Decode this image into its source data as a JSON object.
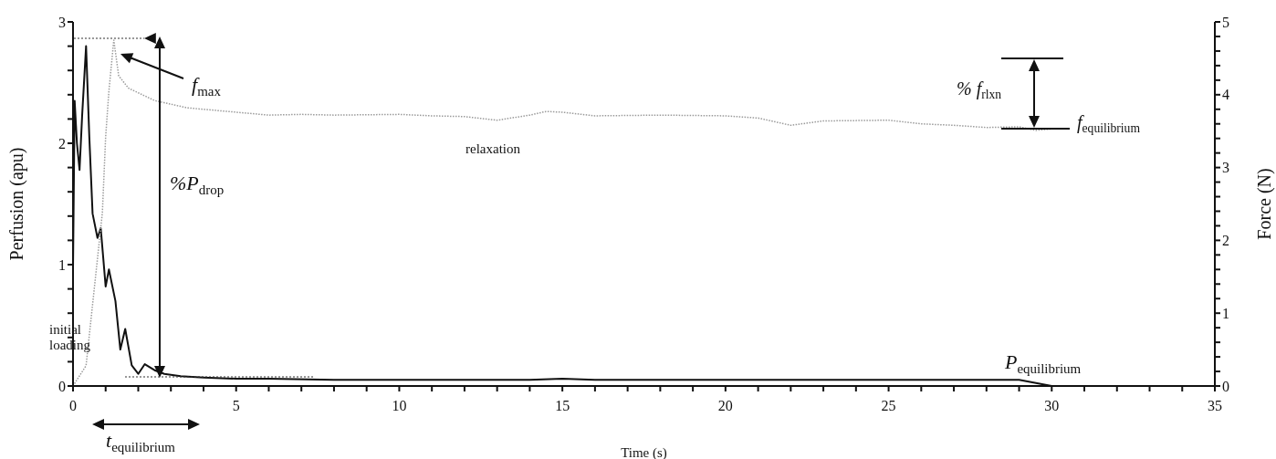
{
  "chart_data": {
    "type": "line",
    "xlabel": "Time (s)",
    "ylabel": "Perfusion (apu)",
    "y2label": "Force (N)",
    "xlim": [
      0,
      35
    ],
    "xticks": [
      0,
      {
        "value": 1,
        "label": null
      },
      {
        "value": 2,
        "label": null
      },
      {
        "value": 3,
        "label": null
      },
      {
        "value": 4,
        "label": null
      },
      5,
      {
        "value": 6,
        "label": null
      },
      {
        "value": 7,
        "label": null
      },
      {
        "value": 8,
        "label": null
      },
      {
        "value": 9,
        "label": null
      },
      10,
      {
        "value": 11,
        "label": null
      },
      {
        "value": 12,
        "label": null
      },
      {
        "value": 13,
        "label": null
      },
      {
        "value": 14,
        "label": null
      },
      15,
      {
        "value": 16,
        "label": null
      },
      {
        "value": 17,
        "label": null
      },
      {
        "value": 18,
        "label": null
      },
      {
        "value": 19,
        "label": null
      },
      20,
      {
        "value": 21,
        "label": null
      },
      {
        "value": 22,
        "label": null
      },
      {
        "value": 23,
        "label": null
      },
      {
        "value": 24,
        "label": null
      },
      25,
      {
        "value": 26,
        "label": null
      },
      {
        "value": 27,
        "label": null
      },
      {
        "value": 28,
        "label": null
      },
      {
        "value": 29,
        "label": null
      },
      30,
      {
        "value": 31,
        "label": null
      },
      {
        "value": 32,
        "label": null
      },
      {
        "value": 33,
        "label": null
      },
      {
        "value": 34,
        "label": null
      },
      35
    ],
    "ylim": [
      0,
      3
    ],
    "yticks": [
      0,
      {
        "value": 0.2,
        "label": null
      },
      {
        "value": 0.4,
        "label": null
      },
      {
        "value": 0.6,
        "label": null
      },
      {
        "value": 0.8,
        "label": null
      },
      1,
      {
        "value": 1.2,
        "label": null
      },
      {
        "value": 1.4,
        "label": null
      },
      {
        "value": 1.6,
        "label": null
      },
      {
        "value": 1.8,
        "label": null
      },
      2,
      {
        "value": 2.2,
        "label": null
      },
      {
        "value": 2.4,
        "label": null
      },
      {
        "value": 2.6,
        "label": null
      },
      {
        "value": 2.8,
        "label": null
      },
      3
    ],
    "y2lim": [
      0,
      5
    ],
    "y2ticks": [
      0,
      {
        "value": 0.2,
        "label": null
      },
      {
        "value": 0.4,
        "label": null
      },
      {
        "value": 0.6,
        "label": null
      },
      {
        "value": 0.8,
        "label": null
      },
      1,
      {
        "value": 1.2,
        "label": null
      },
      {
        "value": 1.4,
        "label": null
      },
      {
        "value": 1.6,
        "label": null
      },
      {
        "value": 1.8,
        "label": null
      },
      2,
      {
        "value": 2.2,
        "label": null
      },
      {
        "value": 2.4,
        "label": null
      },
      {
        "value": 2.6,
        "label": null
      },
      {
        "value": 2.8,
        "label": null
      },
      3,
      {
        "value": 3.2,
        "label": null
      },
      {
        "value": 3.4,
        "label": null
      },
      {
        "value": 3.6,
        "label": null
      },
      {
        "value": 3.8,
        "label": null
      },
      4,
      {
        "value": 4.2,
        "label": null
      },
      {
        "value": 4.4,
        "label": null
      },
      {
        "value": 4.6,
        "label": null
      },
      {
        "value": 4.8,
        "label": null
      },
      5
    ],
    "grid": false,
    "marker": "none",
    "series": [
      {
        "color": "#111111",
        "line_style": "solid",
        "x": [
          0,
          0.05,
          0.12,
          0.2,
          0.28,
          0.4,
          0.5,
          0.6,
          0.75,
          0.85,
          1.0,
          1.1,
          1.3,
          1.45,
          1.6,
          1.8,
          2.0,
          2.2,
          2.5,
          2.8,
          3.3,
          4,
          5,
          6,
          8,
          10,
          12,
          14,
          15,
          16,
          18,
          20,
          22,
          24,
          26,
          28,
          29,
          30
        ],
        "values": [
          0.97,
          2.35,
          2.0,
          1.78,
          2.23,
          2.8,
          2.05,
          1.42,
          1.22,
          1.3,
          0.82,
          0.96,
          0.7,
          0.3,
          0.47,
          0.17,
          0.1,
          0.18,
          0.13,
          0.1,
          0.08,
          0.07,
          0.06,
          0.06,
          0.05,
          0.05,
          0.05,
          0.05,
          0.06,
          0.05,
          0.05,
          0.05,
          0.05,
          0.05,
          0.05,
          0.05,
          0.05,
          0
        ]
      },
      {
        "color": "#9a9a9a",
        "line_style": "dotted",
        "axis": "y2",
        "x": [
          0,
          0.4,
          0.7,
          0.9,
          1.0,
          1.1,
          1.25,
          1.4,
          1.7,
          2.5,
          3.5,
          5,
          6,
          7,
          8,
          10,
          11,
          12,
          13,
          14,
          14.5,
          15,
          16,
          18,
          20,
          21,
          22,
          23,
          25,
          26,
          27,
          28,
          29,
          29.5,
          30
        ],
        "values": [
          0,
          0.28,
          1.54,
          2.38,
          3.42,
          4.05,
          4.75,
          4.26,
          4.09,
          3.92,
          3.82,
          3.76,
          3.72,
          3.73,
          3.72,
          3.73,
          3.71,
          3.7,
          3.65,
          3.72,
          3.77,
          3.76,
          3.71,
          3.72,
          3.71,
          3.68,
          3.58,
          3.64,
          3.65,
          3.6,
          3.58,
          3.55,
          3.56,
          3.51,
          3.53
        ]
      }
    ],
    "annotations": [
      "f$_{max}$",
      "%P$_{drop}$",
      "% f$_{rlxn}$",
      "f$_{equilibrium}$",
      "relaxation",
      "initial loading",
      "P$_{equilibrium}$",
      "t$_{equilibrium}$"
    ]
  }
}
